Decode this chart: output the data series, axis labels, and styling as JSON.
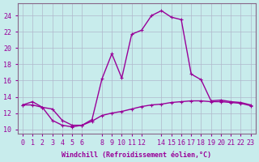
{
  "xlabel": "Windchill (Refroidissement éolien,°C)",
  "background_color": "#c8ecec",
  "grid_color": "#b0b8cc",
  "line_color": "#990099",
  "spine_color": "#886688",
  "xlim": [
    -0.5,
    23.5
  ],
  "ylim": [
    9.5,
    25.5
  ],
  "xticks": [
    0,
    1,
    2,
    3,
    4,
    5,
    6,
    8,
    9,
    10,
    11,
    12,
    14,
    15,
    16,
    17,
    18,
    19,
    20,
    21,
    22,
    23
  ],
  "yticks": [
    10,
    12,
    14,
    16,
    18,
    20,
    22,
    24
  ],
  "curve1_x": [
    0,
    1,
    2,
    3,
    4,
    5,
    6,
    7,
    8,
    9,
    10,
    11,
    12,
    13,
    14,
    15,
    16,
    17,
    18,
    19,
    20,
    21,
    22,
    23
  ],
  "curve1_y": [
    13.0,
    13.4,
    12.7,
    11.1,
    10.5,
    10.3,
    10.5,
    11.2,
    16.2,
    19.3,
    16.3,
    21.7,
    22.2,
    24.0,
    24.6,
    23.8,
    23.5,
    16.8,
    16.1,
    13.5,
    13.6,
    13.4,
    13.3,
    13.0
  ],
  "curve2_x": [
    0,
    1,
    2,
    3,
    4,
    5,
    6,
    7,
    8,
    9,
    10,
    11,
    12,
    13,
    14,
    15,
    16,
    17,
    18,
    19,
    20,
    21,
    22,
    23
  ],
  "curve2_y": [
    13.0,
    13.0,
    12.7,
    12.5,
    11.1,
    10.5,
    10.5,
    11.0,
    11.7,
    12.0,
    12.2,
    12.5,
    12.8,
    13.0,
    13.1,
    13.3,
    13.4,
    13.5,
    13.5,
    13.4,
    13.4,
    13.3,
    13.2,
    12.9
  ]
}
